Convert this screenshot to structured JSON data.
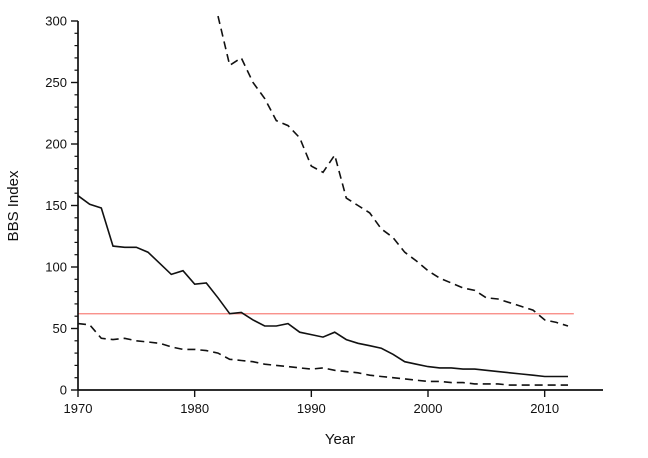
{
  "chart_data": {
    "type": "line",
    "title": "",
    "xlabel": "Year",
    "ylabel": "BBS Index",
    "xlim": [
      1970,
      2015
    ],
    "ylim": [
      0,
      300
    ],
    "x_ticks": [
      1970,
      1980,
      1990,
      2000,
      2010
    ],
    "y_ticks": [
      0,
      50,
      100,
      150,
      200,
      250,
      300
    ],
    "y_minor_tick_interval": 10,
    "grid": false,
    "legend": "none",
    "line_color": "#111111",
    "series": [
      {
        "name": "solid-line",
        "style": "solid",
        "color": "#111111",
        "x": [
          1970,
          1971,
          1972,
          1973,
          1974,
          1975,
          1976,
          1977,
          1978,
          1979,
          1980,
          1981,
          1982,
          1983,
          1984,
          1985,
          1986,
          1987,
          1988,
          1989,
          1990,
          1991,
          1992,
          1993,
          1994,
          1995,
          1996,
          1997,
          1998,
          1999,
          2000,
          2001,
          2002,
          2003,
          2004,
          2005,
          2006,
          2007,
          2008,
          2009,
          2010,
          2011,
          2012
        ],
        "values": [
          158,
          151,
          148,
          117,
          116,
          116,
          112,
          103,
          94,
          97,
          86,
          87,
          75,
          62,
          63,
          57,
          52,
          52,
          54,
          47,
          45,
          43,
          47,
          41,
          38,
          36,
          34,
          29,
          23,
          21,
          19,
          18,
          18,
          17,
          17,
          16,
          15,
          14,
          13,
          12,
          11,
          11,
          11
        ]
      },
      {
        "name": "upper-dashed-line",
        "style": "dashed",
        "color": "#111111",
        "x": [
          1982,
          1983,
          1984,
          1985,
          1986,
          1987,
          1988,
          1989,
          1990,
          1991,
          1992,
          1993,
          1994,
          1995,
          1996,
          1997,
          1998,
          1999,
          2000,
          2001,
          2002,
          2003,
          2004,
          2005,
          2006,
          2007,
          2008,
          2009,
          2010,
          2011,
          2012
        ],
        "values": [
          304,
          264,
          270,
          250,
          237,
          219,
          215,
          205,
          182,
          177,
          191,
          156,
          150,
          144,
          131,
          124,
          112,
          105,
          97,
          91,
          87,
          83,
          81,
          75,
          74,
          71,
          68,
          65,
          57,
          55,
          52
        ]
      },
      {
        "name": "lower-dashed-line",
        "style": "dashed",
        "color": "#111111",
        "x": [
          1970,
          1971,
          1972,
          1973,
          1974,
          1975,
          1976,
          1977,
          1978,
          1979,
          1980,
          1981,
          1982,
          1983,
          1984,
          1985,
          1986,
          1987,
          1988,
          1989,
          1990,
          1991,
          1992,
          1993,
          1994,
          1995,
          1996,
          1997,
          1998,
          1999,
          2000,
          2001,
          2002,
          2003,
          2004,
          2005,
          2006,
          2007,
          2008,
          2009,
          2010,
          2011,
          2012
        ],
        "values": [
          54,
          53,
          42,
          41,
          42,
          40,
          39,
          38,
          35,
          33,
          33,
          32,
          30,
          25,
          24,
          23,
          21,
          20,
          19,
          18,
          17,
          18,
          16,
          15,
          14,
          12,
          11,
          10,
          9,
          8,
          7,
          7,
          6,
          6,
          5,
          5,
          5,
          4,
          4,
          4,
          4,
          4,
          4
        ]
      }
    ],
    "reference_line": {
      "value": 62,
      "color": "#f8837c",
      "x_start": 1970,
      "x_end": 2012.5
    }
  }
}
